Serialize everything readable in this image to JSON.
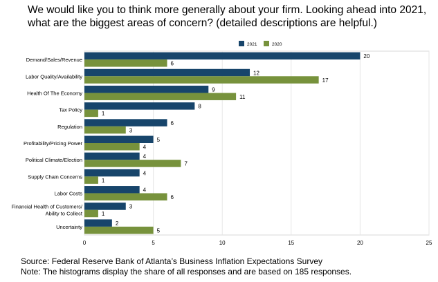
{
  "chart_data": {
    "type": "bar",
    "orientation": "horizontal",
    "title": "We would like you to think more generally about your firm. Looking ahead into 2021, what are the biggest areas of concern? (detailed descriptions are helpful.)",
    "categories": [
      [
        "Demand/Sales/Revenue"
      ],
      [
        "Labor Quality/Availability"
      ],
      [
        "Health Of The Economy"
      ],
      [
        "Tax Policy"
      ],
      [
        "Regulation"
      ],
      [
        "Profitability/Pricing Power"
      ],
      [
        "Political Climate/Election"
      ],
      [
        "Supply Chain Concerns"
      ],
      [
        "Labor Costs"
      ],
      [
        "Financial Health of Customers/",
        "Ability to Collect"
      ],
      [
        "Uncertainty"
      ]
    ],
    "series": [
      {
        "name": "2021",
        "color": "#17456b",
        "values": [
          20,
          12,
          9,
          8,
          6,
          5,
          4,
          4,
          4,
          3,
          2
        ]
      },
      {
        "name": "2020",
        "color": "#77923c",
        "values": [
          6,
          17,
          11,
          1,
          3,
          4,
          7,
          1,
          6,
          1,
          5
        ]
      }
    ],
    "xlim": [
      0,
      25
    ],
    "xticks": [
      0,
      5,
      10,
      15,
      20,
      25
    ],
    "grid": true,
    "legend_position": "top-center"
  },
  "footer": {
    "source": "Source: Federal Reserve Bank of Atlanta’s Business Inflation Expectations Survey",
    "note": "Note: The histograms display the share of all responses and are based on 185 responses."
  }
}
